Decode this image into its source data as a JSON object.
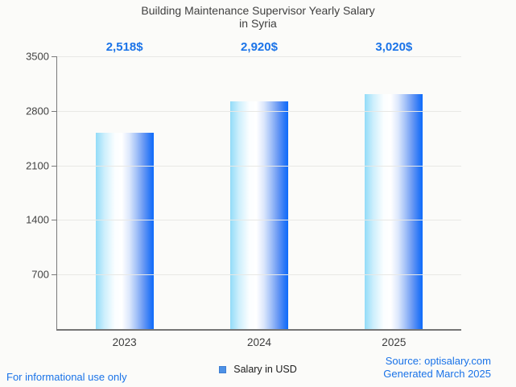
{
  "title": {
    "line1": "Building Maintenance Supervisor Yearly Salary",
    "line2": "in Syria"
  },
  "chart_data": {
    "type": "bar",
    "title": "Building Maintenance Supervisor Yearly Salary in Syria",
    "categories": [
      "2023",
      "2024",
      "2025"
    ],
    "series": [
      {
        "name": "Salary in USD",
        "values": [
          2518,
          2920,
          3020
        ]
      }
    ],
    "data_labels": [
      "2,518$",
      "2,920$",
      "3,020$"
    ],
    "xlabel": "",
    "ylabel": "",
    "ylim": [
      0,
      3500
    ],
    "yticks": [
      3500,
      2800,
      2100,
      1400,
      700
    ],
    "grid": true,
    "legend_position": "bottom",
    "annotation_color": "#1a73e8",
    "bar_gradient": [
      "#92dbf8",
      "#ffffff",
      "#0d6bfb"
    ]
  },
  "legend": {
    "label": "Salary in USD",
    "swatch_color": "#4d91e6"
  },
  "footer": {
    "disclaimer": "For informational use only",
    "source": "Source: optisalary.com",
    "generated": "Generated March 2025"
  },
  "colors": {
    "background": "#fbfbf9",
    "title_text": "#3f3f3f",
    "axis_text": "#424242",
    "link_blue": "#1a73e8",
    "gridline": "#e8e8e5",
    "axis_line": "#7a7a7a"
  }
}
